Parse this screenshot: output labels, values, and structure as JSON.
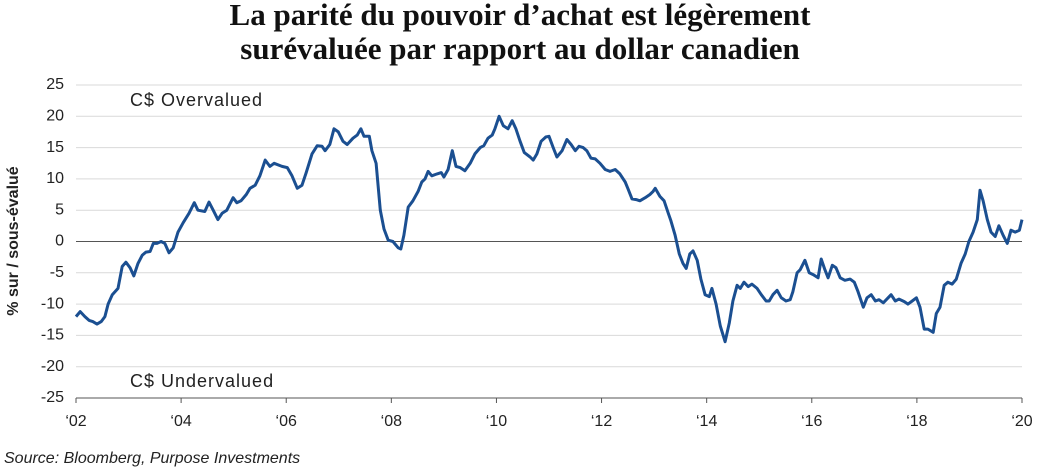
{
  "chart_data": {
    "type": "line",
    "title": [
      "La parité du pouvoir d’achat est légèrement",
      "surévaluée par rapport au dollar canadien"
    ],
    "y_label": "% sur / sous-évalué",
    "annotations": [
      "C$ Overvalued",
      "C$ Undervalued"
    ],
    "source": "Source: Bloomberg, Purpose Investments",
    "color": "#1b4f91",
    "grid": true,
    "xlim": [
      2002,
      2020
    ],
    "ylim": [
      -25,
      25
    ],
    "yticks": [
      25,
      20,
      15,
      10,
      5,
      0,
      -5,
      -10,
      -15,
      -20,
      -25
    ],
    "xticks": [
      {
        "value": 2002,
        "label": "‘02"
      },
      {
        "value": 2004,
        "label": "‘04"
      },
      {
        "value": 2006,
        "label": "‘06"
      },
      {
        "value": 2008,
        "label": "‘08"
      },
      {
        "value": 2010,
        "label": "‘10"
      },
      {
        "value": 2012,
        "label": "‘12"
      },
      {
        "value": 2014,
        "label": "‘14"
      },
      {
        "value": 2016,
        "label": "‘16"
      },
      {
        "value": 2018,
        "label": "‘18"
      },
      {
        "value": 2020,
        "label": "‘20"
      }
    ],
    "x": [
      2002.0,
      2002.08,
      2002.17,
      2002.25,
      2002.32,
      2002.4,
      2002.48,
      2002.55,
      2002.61,
      2002.69,
      2002.8,
      2002.88,
      2002.95,
      2003.03,
      2003.1,
      2003.18,
      2003.26,
      2003.33,
      2003.41,
      2003.47,
      2003.54,
      2003.62,
      2003.69,
      2003.77,
      2003.85,
      2003.94,
      2004.04,
      2004.15,
      2004.25,
      2004.32,
      2004.45,
      2004.53,
      2004.61,
      2004.7,
      2004.78,
      2004.87,
      2004.99,
      2005.06,
      2005.14,
      2005.24,
      2005.31,
      2005.41,
      2005.5,
      2005.6,
      2005.69,
      2005.77,
      2005.92,
      2006.02,
      2006.11,
      2006.21,
      2006.3,
      2006.38,
      2006.49,
      2006.59,
      2006.68,
      2006.74,
      2006.83,
      2006.91,
      2006.99,
      2007.08,
      2007.16,
      2007.27,
      2007.35,
      2007.42,
      2007.48,
      2007.58,
      2007.63,
      2007.71,
      2007.79,
      2007.86,
      2007.94,
      2008.03,
      2008.13,
      2008.18,
      2008.24,
      2008.32,
      2008.41,
      2008.51,
      2008.58,
      2008.64,
      2008.7,
      2008.77,
      2008.87,
      2008.95,
      2009.0,
      2009.08,
      2009.16,
      2009.23,
      2009.31,
      2009.4,
      2009.5,
      2009.59,
      2009.69,
      2009.76,
      2009.84,
      2009.92,
      2009.97,
      2010.05,
      2010.13,
      2010.22,
      2010.3,
      2010.37,
      2010.45,
      2010.53,
      2010.64,
      2010.7,
      2010.77,
      2010.85,
      2010.94,
      2011.0,
      2011.08,
      2011.15,
      2011.25,
      2011.34,
      2011.42,
      2011.5,
      2011.57,
      2011.65,
      2011.72,
      2011.8,
      2011.88,
      2011.97,
      2012.07,
      2012.16,
      2012.26,
      2012.35,
      2012.45,
      2012.5,
      2012.58,
      2012.66,
      2012.73,
      2012.83,
      2012.92,
      2012.98,
      2013.02,
      2013.11,
      2013.19,
      2013.27,
      2013.32,
      2013.4,
      2013.48,
      2013.55,
      2013.61,
      2013.68,
      2013.74,
      2013.82,
      2013.89,
      2013.97,
      2014.05,
      2014.1,
      2014.18,
      2014.26,
      2014.35,
      2014.43,
      2014.5,
      2014.58,
      2014.64,
      2014.71,
      2014.79,
      2014.86,
      2014.96,
      2015.04,
      2015.13,
      2015.19,
      2015.26,
      2015.34,
      2015.42,
      2015.51,
      2015.59,
      2015.64,
      2015.72,
      2015.78,
      2015.87,
      2015.95,
      2016.03,
      2016.12,
      2016.18,
      2016.25,
      2016.31,
      2016.39,
      2016.46,
      2016.54,
      2016.63,
      2016.73,
      2016.81,
      2016.88,
      2016.98,
      2017.05,
      2017.13,
      2017.21,
      2017.28,
      2017.36,
      2017.43,
      2017.51,
      2017.59,
      2017.66,
      2017.76,
      2017.83,
      2017.91,
      2017.99,
      2018.06,
      2018.14,
      2018.21,
      2018.31,
      2018.37,
      2018.44,
      2018.52,
      2018.59,
      2018.67,
      2018.75,
      2018.84,
      2018.92,
      2018.99,
      2019.07,
      2019.15,
      2019.2,
      2019.26,
      2019.34,
      2019.41,
      2019.49,
      2019.56,
      2019.64,
      2019.72,
      2019.79,
      2019.87,
      2019.95,
      2020.0
    ],
    "values": [
      -12,
      -11.2,
      -12,
      -12.6,
      -12.8,
      -13.2,
      -12.8,
      -12,
      -10,
      -8.5,
      -7.5,
      -4,
      -3.3,
      -4.2,
      -5.5,
      -3.5,
      -2.2,
      -1.7,
      -1.6,
      -0.3,
      -0.3,
      0,
      -0.3,
      -1.8,
      -1,
      1.5,
      3,
      4.5,
      6.2,
      5,
      4.8,
      6.3,
      5,
      3.5,
      4.5,
      5,
      7,
      6.2,
      6.5,
      7.5,
      8.5,
      9,
      10.5,
      13,
      12,
      12.5,
      12,
      11.8,
      10.5,
      8.5,
      9,
      11,
      14,
      15.3,
      15.2,
      14.5,
      15.5,
      18,
      17.5,
      16,
      15.5,
      16.5,
      17,
      18,
      16.8,
      16.8,
      14.5,
      12.5,
      5,
      2,
      0.2,
      0,
      -1,
      -1.2,
      1,
      5.5,
      6.5,
      8,
      9.5,
      10,
      11.2,
      10.5,
      10.8,
      11,
      10.3,
      11.5,
      14.5,
      12,
      11.8,
      11.3,
      12.5,
      14,
      15,
      15.3,
      16.5,
      17,
      18,
      20,
      18.5,
      18,
      19.3,
      18,
      16,
      14.2,
      13.5,
      13,
      14,
      16,
      16.7,
      16.8,
      15,
      13.5,
      14.5,
      16.3,
      15.5,
      14.5,
      15.2,
      15,
      14.5,
      13.3,
      13.2,
      12.5,
      11.5,
      11.2,
      11.5,
      10.8,
      9.5,
      8.5,
      6.8,
      6.7,
      6.5,
      7,
      7.5,
      8,
      8.5,
      7.2,
      6.5,
      4.5,
      3.3,
      1,
      -2,
      -3.5,
      -4.3,
      -2,
      -1.5,
      -3,
      -6,
      -8.5,
      -8.8,
      -7.5,
      -10,
      -13.5,
      -16,
      -13,
      -9.5,
      -7,
      -7.5,
      -6.5,
      -7.2,
      -6.8,
      -7.5,
      -8.5,
      -9.5,
      -9.5,
      -8.5,
      -7.8,
      -9,
      -9.5,
      -9.3,
      -8,
      -5,
      -4.5,
      -3,
      -5,
      -5.3,
      -5.8,
      -2.8,
      -4.5,
      -5.8,
      -3.8,
      -4.2,
      -5.8,
      -6.2,
      -6,
      -6.5,
      -8,
      -10.5,
      -9,
      -8.5,
      -9.5,
      -9.3,
      -9.8,
      -9.2,
      -8.5,
      -9.5,
      -9.2,
      -9.6,
      -10,
      -9.5,
      -9,
      -10.5,
      -14,
      -14,
      -14.5,
      -11.5,
      -10.5,
      -7,
      -6.5,
      -6.8,
      -6,
      -3.5,
      -2,
      0,
      1.5,
      3.5,
      8.2,
      6.5,
      3.5,
      1.5,
      0.8,
      2.5,
      1,
      -0.3,
      1.8,
      1.5,
      1.8,
      3.5
    ]
  }
}
